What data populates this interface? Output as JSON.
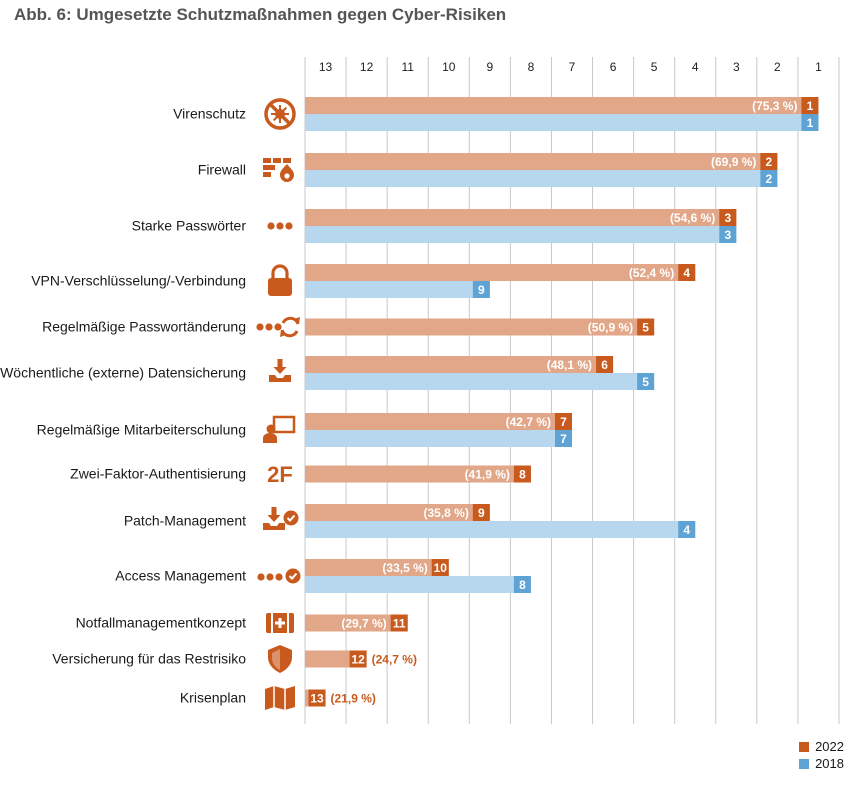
{
  "title": "Abb. 6: Umgesetzte Schutzmaßnahmen gegen Cyber-Risiken",
  "colors": {
    "series_2022": "#e2a688",
    "rank_2022": "#c85a1e",
    "series_2018": "#b7d7ee",
    "rank_2018": "#5ea3d3",
    "icon": "#c85a1e",
    "grid": "#c8c8c8"
  },
  "chart_data": {
    "type": "bar",
    "orientation": "horizontal",
    "x_axis": {
      "meaning": "rank",
      "reversed": true,
      "range": [
        13.5,
        0.5
      ],
      "ticks": [
        13,
        12,
        11,
        10,
        9,
        8,
        7,
        6,
        5,
        4,
        3,
        2,
        1
      ],
      "position": "top"
    },
    "legend": {
      "position": "bottom-right",
      "entries": [
        {
          "label": "2022",
          "color": "#c85a1e"
        },
        {
          "label": "2018",
          "color": "#5ea3d3"
        }
      ]
    },
    "categories": [
      {
        "label": "Virenschutz",
        "icon": "virus-shield-icon",
        "rank_2022": 1,
        "pct_2022": "(75,3 %)",
        "rank_2018": 1
      },
      {
        "label": "Firewall",
        "icon": "firewall-icon",
        "rank_2022": 2,
        "pct_2022": "(69,9 %)",
        "rank_2018": 2
      },
      {
        "label": "Starke Passwörter",
        "icon": "password-dots-icon",
        "rank_2022": 3,
        "pct_2022": "(54,6 %)",
        "rank_2018": 3
      },
      {
        "label": "VPN-Verschlüsselung/-Verbindung",
        "icon": "lock-icon",
        "rank_2022": 4,
        "pct_2022": "(52,4 %)",
        "rank_2018": 9
      },
      {
        "label": "Regelmäßige Passwortänderung",
        "icon": "password-refresh-icon",
        "rank_2022": 5,
        "pct_2022": "(50,9 %)",
        "rank_2018": null
      },
      {
        "label": "Wöchentliche (externe) Datensicherung",
        "icon": "download-backup-icon",
        "rank_2022": 6,
        "pct_2022": "(48,1 %)",
        "rank_2018": 5
      },
      {
        "label": "Regelmäßige Mitarbeiterschulung",
        "icon": "training-presentation-icon",
        "rank_2022": 7,
        "pct_2022": "(42,7 %)",
        "rank_2018": 7
      },
      {
        "label": "Zwei-Faktor-Authentisierung",
        "icon": "two-factor-icon",
        "icon_text": "2F",
        "rank_2022": 8,
        "pct_2022": "(41,9 %)",
        "rank_2018": null
      },
      {
        "label": "Patch-Management",
        "icon": "patch-download-check-icon",
        "rank_2022": 9,
        "pct_2022": "(35,8 %)",
        "rank_2018": 4
      },
      {
        "label": "Access Management",
        "icon": "access-check-icon",
        "rank_2022": 10,
        "pct_2022": "(33,5 %)",
        "rank_2018": 8
      },
      {
        "label": "Notfallmanagementkonzept",
        "icon": "first-aid-kit-icon",
        "rank_2022": 11,
        "pct_2022": "(29,7 %)",
        "rank_2018": null
      },
      {
        "label": "Versicherung für das Restrisiko",
        "icon": "shield-icon",
        "rank_2022": 12,
        "pct_2022": "(24,7 %)",
        "rank_2018": null
      },
      {
        "label": "Krisenplan",
        "icon": "map-icon",
        "rank_2022": 13,
        "pct_2022": "(21,9 %)",
        "rank_2018": null
      }
    ]
  }
}
